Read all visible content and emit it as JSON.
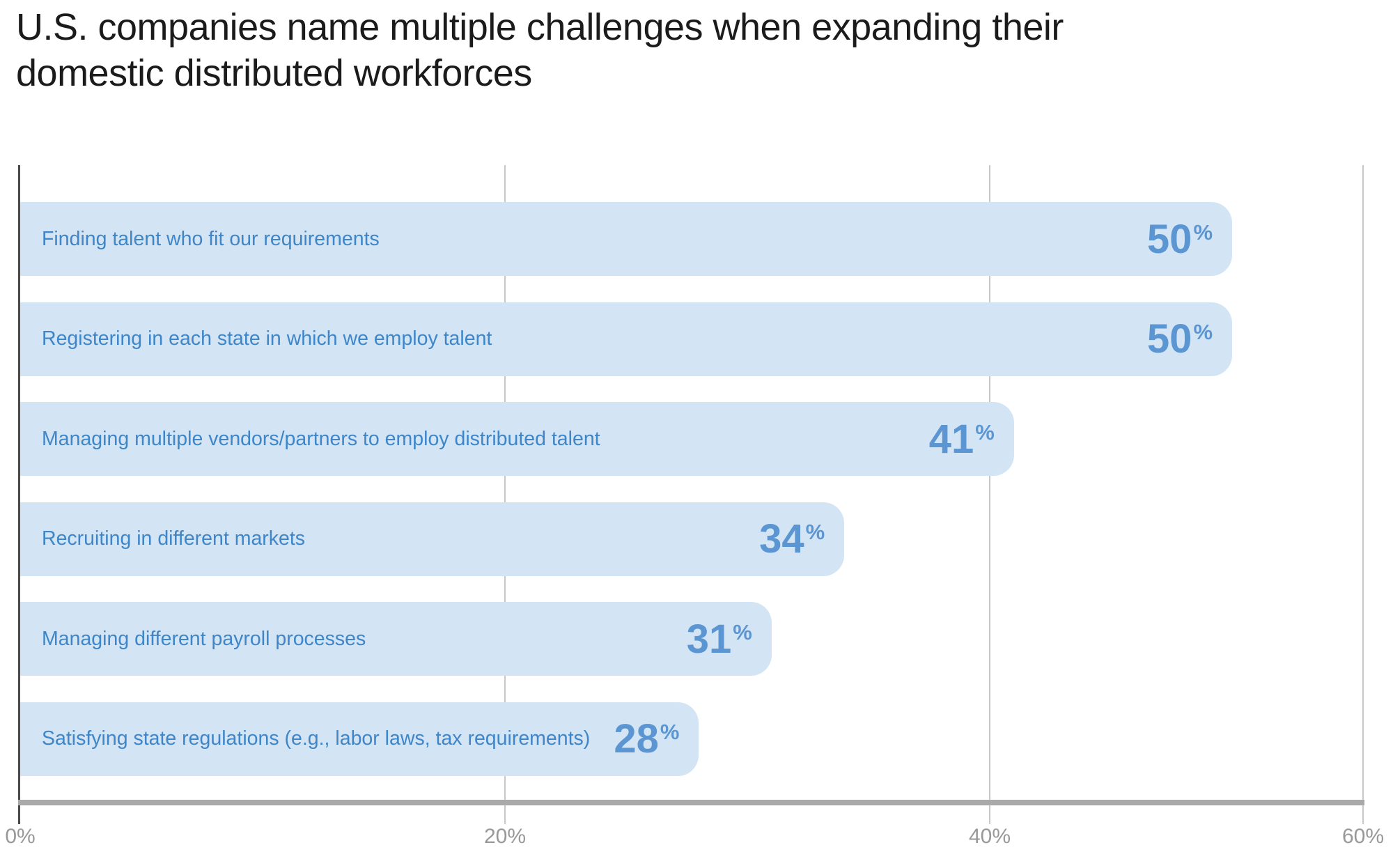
{
  "title": {
    "line1": "U.S. companies name multiple challenges when expanding their",
    "line2": "domestic distributed workforces"
  },
  "chart_data": {
    "type": "bar",
    "orientation": "horizontal",
    "title": "U.S. companies name multiple challenges when expanding their domestic distributed workforces",
    "categories": [
      "Finding talent who fit our requirements",
      "Registering in each state in which we employ talent",
      "Managing multiple vendors/partners to employ distributed talent",
      "Recruiting in different markets",
      "Managing different payroll processes",
      "Satisfying state regulations (e.g., labor laws, tax requirements)"
    ],
    "values": [
      50,
      50,
      41,
      34,
      31,
      28
    ],
    "value_suffix": "%",
    "xlabel": "",
    "ylabel": "",
    "xlim": [
      0,
      60
    ],
    "x_ticks": [
      {
        "label": "0%",
        "pos_pct": 0
      },
      {
        "label": "20%",
        "pos_pct": 36.1
      },
      {
        "label": "40%",
        "pos_pct": 72.2
      },
      {
        "label": "60%",
        "pos_pct": 100
      }
    ],
    "unit_width_pct": 1.805,
    "grid": "vertical",
    "legend": "none",
    "value_labels": "inside-end",
    "category_labels": "inside-start"
  },
  "colors": {
    "background": "#ffffff",
    "bar_fill": "#d3e4f4",
    "category_label": "#3e86c8",
    "value_label": "#5b96d3",
    "title_text": "#1b1b1b",
    "axis_baseline": "#a9a9a9",
    "y_axis_line": "#4a4a4a",
    "gridline": "#c8c8c8",
    "tick_label": "#989898"
  }
}
